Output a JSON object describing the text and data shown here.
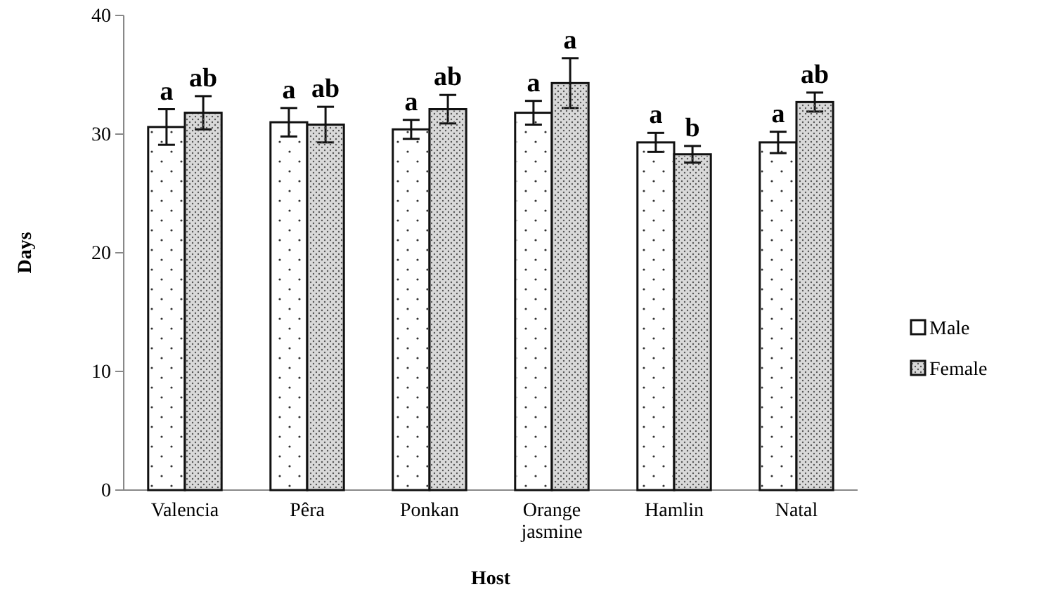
{
  "chart_data": {
    "type": "bar",
    "xlabel": "Host",
    "ylabel": "Days",
    "categories": [
      "Valencia",
      "Pêra",
      "Ponkan",
      "Orange jasmine",
      "Hamlin",
      "Natal"
    ],
    "series": [
      {
        "name": "Male",
        "color": "#ffffff",
        "values": [
          30.6,
          31.0,
          30.4,
          31.8,
          29.3,
          29.3
        ],
        "errors": [
          1.5,
          1.2,
          0.8,
          1.0,
          0.8,
          0.9
        ],
        "value_labels": [
          "a",
          "a",
          "a",
          "a",
          "a",
          "a"
        ]
      },
      {
        "name": "Female",
        "color": "#d9d9d9",
        "values": [
          31.8,
          30.8,
          32.1,
          34.3,
          28.3,
          32.7
        ],
        "errors": [
          1.4,
          1.5,
          1.2,
          2.1,
          0.7,
          0.8
        ],
        "value_labels": [
          "ab",
          "ab",
          "ab",
          "a",
          "b",
          "ab"
        ]
      }
    ],
    "ylim": [
      0,
      40
    ],
    "yticks": [
      0,
      10,
      20,
      30,
      40
    ],
    "legend": "right"
  }
}
